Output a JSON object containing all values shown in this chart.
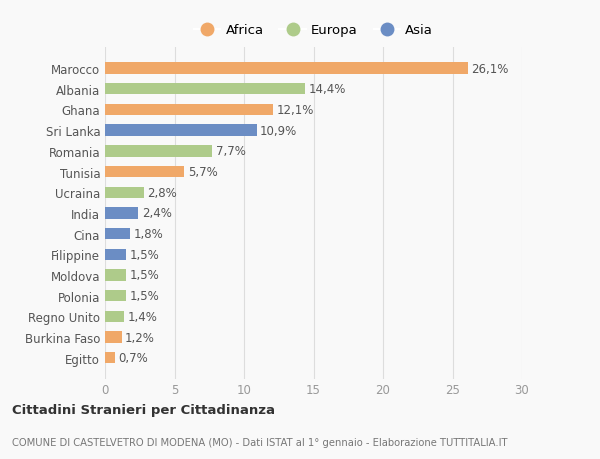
{
  "countries": [
    "Marocco",
    "Albania",
    "Ghana",
    "Sri Lanka",
    "Romania",
    "Tunisia",
    "Ucraina",
    "India",
    "Cina",
    "Filippine",
    "Moldova",
    "Polonia",
    "Regno Unito",
    "Burkina Faso",
    "Egitto"
  ],
  "values": [
    26.1,
    14.4,
    12.1,
    10.9,
    7.7,
    5.7,
    2.8,
    2.4,
    1.8,
    1.5,
    1.5,
    1.5,
    1.4,
    1.2,
    0.7
  ],
  "continents": [
    "Africa",
    "Europa",
    "Africa",
    "Asia",
    "Europa",
    "Africa",
    "Europa",
    "Asia",
    "Asia",
    "Asia",
    "Europa",
    "Europa",
    "Europa",
    "Africa",
    "Africa"
  ],
  "colors": {
    "Africa": "#F0A868",
    "Europa": "#AECB8A",
    "Asia": "#6B8DC4"
  },
  "legend_order": [
    "Africa",
    "Europa",
    "Asia"
  ],
  "xlim": [
    0,
    30
  ],
  "xticks": [
    0,
    5,
    10,
    15,
    20,
    25,
    30
  ],
  "title": "Cittadini Stranieri per Cittadinanza",
  "subtitle": "COMUNE DI CASTELVETRO DI MODENA (MO) - Dati ISTAT al 1° gennaio - Elaborazione TUTTITALIA.IT",
  "background_color": "#f9f9f9",
  "grid_color": "#dddddd",
  "label_fontsize": 8.5,
  "value_fontsize": 8.5,
  "bar_height": 0.55
}
